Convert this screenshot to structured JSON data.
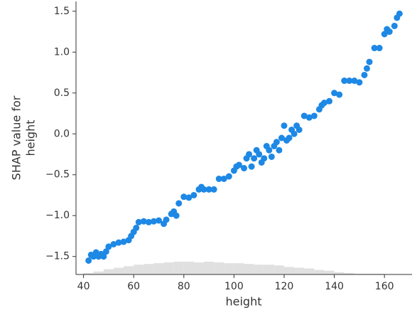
{
  "chart_data": {
    "type": "scatter",
    "xlabel": "height",
    "ylabel": [
      "SHAP value for",
      "height"
    ],
    "color": "#1e88e5",
    "x": [
      42,
      43,
      44,
      45,
      46,
      47,
      48,
      49,
      50,
      52,
      54,
      56,
      58,
      59,
      60,
      61,
      62,
      64,
      66,
      68,
      70,
      72,
      73,
      75,
      76,
      77,
      78,
      80,
      82,
      84,
      86,
      87,
      88,
      90,
      92,
      94,
      96,
      98,
      100,
      101,
      102,
      104,
      105,
      106,
      107,
      108,
      109,
      110,
      111,
      112,
      113,
      114,
      115,
      116,
      117,
      118,
      119,
      120,
      121,
      122,
      123,
      124,
      125,
      126,
      128,
      130,
      132,
      134,
      135,
      136,
      138,
      140,
      142,
      144,
      146,
      148,
      150,
      152,
      153,
      154,
      156,
      158,
      160,
      161,
      162,
      164,
      165,
      166
    ],
    "values": [
      -1.55,
      -1.48,
      -1.5,
      -1.45,
      -1.5,
      -1.47,
      -1.5,
      -1.44,
      -1.38,
      -1.35,
      -1.33,
      -1.32,
      -1.3,
      -1.25,
      -1.2,
      -1.15,
      -1.08,
      -1.07,
      -1.08,
      -1.07,
      -1.06,
      -1.1,
      -1.05,
      -0.98,
      -0.95,
      -1.0,
      -0.85,
      -0.77,
      -0.78,
      -0.75,
      -0.68,
      -0.65,
      -0.68,
      -0.68,
      -0.68,
      -0.55,
      -0.55,
      -0.52,
      -0.45,
      -0.4,
      -0.38,
      -0.42,
      -0.3,
      -0.25,
      -0.4,
      -0.3,
      -0.2,
      -0.25,
      -0.35,
      -0.3,
      -0.15,
      -0.2,
      -0.28,
      -0.15,
      -0.1,
      -0.2,
      -0.05,
      0.1,
      -0.08,
      -0.05,
      0.05,
      0.0,
      0.1,
      0.05,
      0.22,
      0.2,
      0.22,
      0.3,
      0.35,
      0.38,
      0.4,
      0.5,
      0.48,
      0.65,
      0.65,
      0.65,
      0.63,
      0.72,
      0.8,
      0.88,
      1.05,
      1.05,
      1.22,
      1.28,
      1.25,
      1.32,
      1.42,
      1.47
    ],
    "histogram": {
      "color": "#e0e0e0",
      "bins": [
        40,
        44,
        48,
        52,
        56,
        60,
        64,
        68,
        72,
        76,
        80,
        84,
        88,
        92,
        96,
        100,
        104,
        108,
        112,
        116,
        120,
        124,
        128,
        132,
        136,
        140,
        144,
        148,
        152,
        156,
        160,
        164,
        168
      ],
      "counts": [
        2,
        4,
        7,
        9,
        11,
        13,
        14,
        15,
        16,
        17,
        17,
        16,
        17,
        16,
        15,
        15,
        14,
        13,
        13,
        12,
        10,
        9,
        8,
        6,
        5,
        3,
        2,
        1,
        1,
        1,
        0,
        0
      ]
    },
    "xlim": [
      37,
      171
    ],
    "xticks": [
      40,
      60,
      80,
      100,
      120,
      140,
      160
    ],
    "ylim": [
      -1.72,
      1.62
    ],
    "yticks": [
      {
        "value": -1.5,
        "label": "−1.5"
      },
      {
        "value": -1.0,
        "label": "−1.0"
      },
      {
        "value": -0.5,
        "label": "−0.5"
      },
      {
        "value": 0.0,
        "label": "0.0"
      },
      0.5,
      {
        "value": 1.0,
        "label": "1.0"
      },
      1.5
    ]
  }
}
